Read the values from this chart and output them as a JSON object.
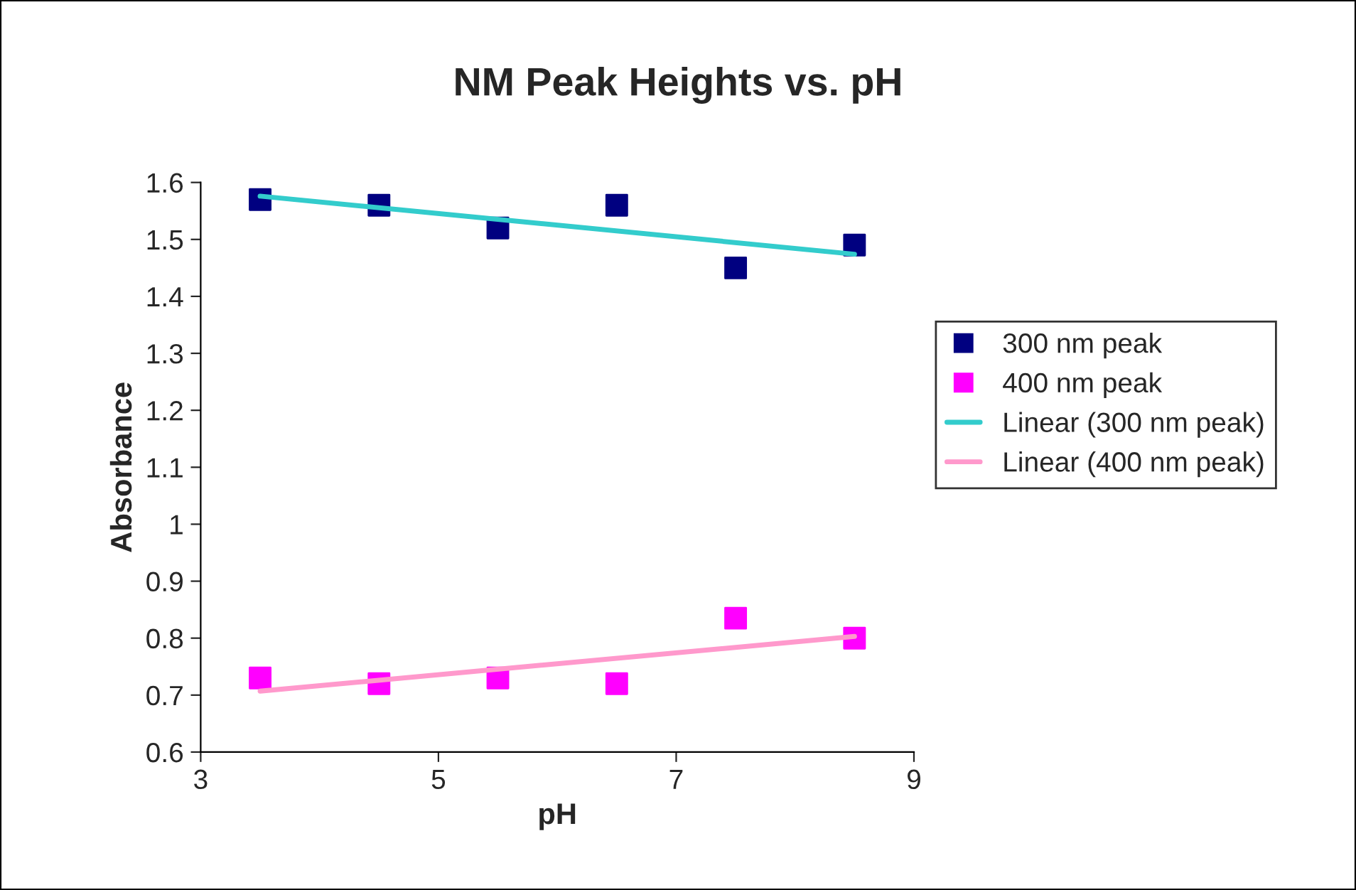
{
  "chart_data": {
    "type": "scatter",
    "title": "NM Peak Heights vs. pH",
    "xlabel": "pH",
    "ylabel": "Absorbance",
    "xlim": [
      3,
      9
    ],
    "xticks": [
      3,
      5,
      7,
      9
    ],
    "ylim": [
      0.6,
      1.6
    ],
    "yticks": [
      0.6,
      0.7,
      0.8,
      0.9,
      1,
      1.1,
      1.2,
      1.3,
      1.4,
      1.5,
      1.6
    ],
    "grid": false,
    "legend": "right",
    "series": [
      {
        "name": "300 nm peak",
        "marker": "square",
        "color": "#000080",
        "x": [
          3.5,
          4.5,
          5.5,
          6.5,
          7.5,
          8.5
        ],
        "values": [
          1.57,
          1.56,
          1.52,
          1.56,
          1.45,
          1.49
        ]
      },
      {
        "name": "400 nm peak",
        "marker": "square",
        "color": "#ff00ff",
        "x": [
          3.5,
          4.5,
          5.5,
          6.5,
          7.5,
          8.5
        ],
        "values": [
          0.73,
          0.72,
          0.73,
          0.72,
          0.835,
          0.8
        ]
      },
      {
        "name": "Linear (300 nm peak)",
        "type": "line",
        "marker": "none",
        "color": "#33cccc",
        "x": [
          3.5,
          8.5
        ],
        "values": [
          1.576,
          1.474
        ]
      },
      {
        "name": "Linear (400 nm peak)",
        "type": "line",
        "marker": "none",
        "color": "#ff99cc",
        "x": [
          3.5,
          8.5
        ],
        "values": [
          0.707,
          0.803
        ]
      }
    ]
  }
}
